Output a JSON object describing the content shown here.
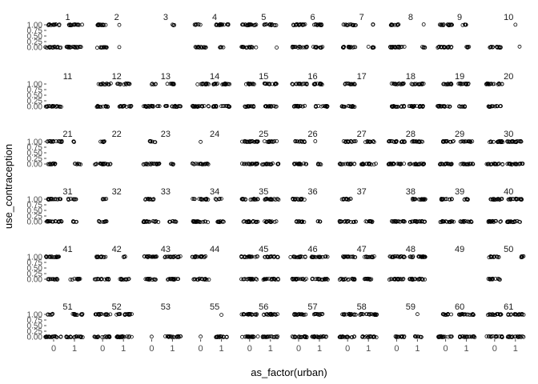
{
  "chart_data": {
    "type": "scatter",
    "layout": "facet-grid",
    "xlabel": "as_factor(urban)",
    "ylabel": "use_contraception",
    "x_categories": [
      "0",
      "1"
    ],
    "y_ticks": [
      "1.00",
      "0.75",
      "0.50",
      "0.25",
      "0.00"
    ],
    "ylim": [
      0,
      1
    ],
    "grid": false,
    "point_style": "open-circle",
    "panels": [
      {
        "id": "1",
        "one_0": [
          -0.3,
          0.3
        ],
        "one_1": [
          -0.3,
          0.4
        ],
        "zero_0": [
          -0.4,
          0.4
        ],
        "zero_1": [
          -0.4,
          0.4
        ]
      },
      {
        "id": "2",
        "one_0": [
          -0.25,
          0.3
        ],
        "one_1": [
          -0.2,
          -0.2
        ],
        "zero_0": [
          -0.3,
          0.2
        ],
        "zero_1": [
          -0.2,
          -0.2
        ]
      },
      {
        "id": "3",
        "one_0": null,
        "one_1": [
          0.0,
          0.1
        ],
        "zero_0": null,
        "zero_1": null
      },
      {
        "id": "4",
        "one_0": [
          -0.3,
          0.0
        ],
        "one_1": [
          -0.3,
          0.4
        ],
        "zero_0": [
          -0.3,
          0.3
        ],
        "zero_1": [
          -0.1,
          0.1
        ]
      },
      {
        "id": "5",
        "one_0": [
          -0.4,
          0.4
        ],
        "one_1": [
          -0.3,
          0.3
        ],
        "zero_0": [
          -0.4,
          0.4
        ],
        "zero_1": [
          0.3,
          0.3
        ]
      },
      {
        "id": "6",
        "one_0": [
          -0.3,
          0.4
        ],
        "one_1": [
          -0.3,
          0.2
        ],
        "zero_0": [
          -0.3,
          0.4
        ],
        "zero_1": [
          -0.3,
          0.2
        ]
      },
      {
        "id": "7",
        "one_0": [
          -0.2,
          0.4
        ],
        "one_1": [
          0.2,
          0.3
        ],
        "zero_0": [
          -0.3,
          0.4
        ],
        "zero_1": [
          0.0,
          0.3
        ]
      },
      {
        "id": "8",
        "one_0": [
          -0.3,
          0.1
        ],
        "one_1": [
          0.3,
          0.3
        ],
        "zero_0": [
          -0.4,
          0.4
        ],
        "zero_1": [
          0.2,
          0.4
        ]
      },
      {
        "id": "9",
        "one_0": [
          -0.3,
          0.4
        ],
        "one_1": [
          -0.2,
          0.0
        ],
        "zero_0": [
          -0.4,
          0.3
        ],
        "zero_1": [
          0.0,
          0.2
        ]
      },
      {
        "id": "10",
        "one_0": null,
        "one_1": [
          0.0,
          0.0
        ],
        "zero_0": [
          -0.3,
          0.3
        ],
        "zero_1": [
          0.2,
          0.2
        ]
      },
      {
        "id": "11",
        "one_0": null,
        "one_1": null,
        "zero_0": [
          -0.4,
          0.4
        ],
        "zero_1": null
      },
      {
        "id": "12",
        "one_0": [
          -0.2,
          0.4
        ],
        "one_1": [
          -0.3,
          0.3
        ],
        "zero_0": [
          -0.3,
          0.3
        ],
        "zero_1": [
          -0.2,
          0.4
        ]
      },
      {
        "id": "13",
        "one_0": [
          0.0,
          0.2
        ],
        "one_1": [
          -0.3,
          0.1
        ],
        "zero_0": [
          -0.4,
          0.4
        ],
        "zero_1": [
          -0.4,
          0.4
        ]
      },
      {
        "id": "14",
        "one_0": [
          -0.2,
          0.4
        ],
        "one_1": [
          -0.4,
          0.4
        ],
        "zero_0": [
          -0.4,
          0.4
        ],
        "zero_1": [
          -0.4,
          0.4
        ]
      },
      {
        "id": "15",
        "one_0": [
          -0.2,
          0.3
        ],
        "one_1": [
          -0.3,
          0.3
        ],
        "zero_0": [
          -0.3,
          0.3
        ],
        "zero_1": [
          -0.3,
          0.3
        ]
      },
      {
        "id": "16",
        "one_0": [
          -0.4,
          0.4
        ],
        "one_1": [
          -0.3,
          0.3
        ],
        "zero_0": [
          -0.3,
          0.3
        ],
        "zero_1": [
          -0.2,
          0.4
        ]
      },
      {
        "id": "17",
        "one_0": [
          -0.2,
          0.4
        ],
        "one_1": null,
        "zero_0": [
          -0.3,
          0.4
        ],
        "zero_1": null
      },
      {
        "id": "18",
        "one_0": [
          -0.3,
          0.4
        ],
        "one_1": [
          -0.3,
          0.3
        ],
        "zero_0": [
          -0.3,
          0.4
        ],
        "zero_1": [
          -0.4,
          0.4
        ]
      },
      {
        "id": "19",
        "one_0": [
          -0.2,
          0.3
        ],
        "one_1": [
          -0.4,
          0.2
        ],
        "zero_0": [
          -0.4,
          0.3
        ],
        "zero_1": [
          -0.4,
          0.0
        ]
      },
      {
        "id": "20",
        "one_0": [
          -0.4,
          0.4
        ],
        "one_1": null,
        "zero_0": [
          -0.3,
          0.3
        ],
        "zero_1": null
      },
      {
        "id": "21",
        "one_0": [
          -0.3,
          0.4
        ],
        "one_1": [
          -0.1,
          0.0
        ],
        "zero_0": [
          -0.3,
          0.2
        ],
        "zero_1": [
          0.0,
          0.3
        ]
      },
      {
        "id": "22",
        "one_0": [
          -0.2,
          0.1
        ],
        "one_1": null,
        "zero_0": [
          -0.4,
          0.4
        ],
        "zero_1": null
      },
      {
        "id": "23",
        "one_0": [
          -0.1,
          0.2
        ],
        "one_1": null,
        "zero_0": [
          -0.4,
          0.4
        ],
        "zero_1": [
          -0.1,
          0.1
        ]
      },
      {
        "id": "24",
        "one_0": [
          0.0,
          0.0
        ],
        "one_1": null,
        "zero_0": [
          -0.4,
          0.4
        ],
        "zero_1": null
      },
      {
        "id": "25",
        "one_0": [
          -0.4,
          0.4
        ],
        "one_1": [
          -0.3,
          0.3
        ],
        "zero_0": [
          -0.4,
          0.4
        ],
        "zero_1": [
          -0.4,
          0.4
        ]
      },
      {
        "id": "26",
        "one_0": [
          -0.2,
          0.3
        ],
        "one_1": [
          -0.2,
          -0.2
        ],
        "zero_0": [
          -0.3,
          0.4
        ],
        "zero_1": [
          -0.1,
          0.1
        ]
      },
      {
        "id": "27",
        "one_0": [
          -0.2,
          0.4
        ],
        "one_1": [
          -0.2,
          0.3
        ],
        "zero_0": [
          -0.4,
          0.4
        ],
        "zero_1": [
          -0.4,
          0.4
        ]
      },
      {
        "id": "28",
        "one_0": [
          -0.4,
          0.4
        ],
        "one_1": [
          -0.3,
          0.3
        ],
        "zero_0": [
          -0.4,
          0.4
        ],
        "zero_1": [
          -0.4,
          0.4
        ]
      },
      {
        "id": "29",
        "one_0": [
          -0.2,
          0.4
        ],
        "one_1": [
          -0.3,
          0.3
        ],
        "zero_0": [
          -0.4,
          0.4
        ],
        "zero_1": [
          -0.3,
          0.4
        ]
      },
      {
        "id": "30",
        "one_0": [
          -0.3,
          0.4
        ],
        "one_1": [
          -0.4,
          0.4
        ],
        "zero_0": [
          -0.4,
          0.4
        ],
        "zero_1": [
          -0.4,
          0.4
        ]
      },
      {
        "id": "31",
        "one_0": [
          -0.3,
          0.4
        ],
        "one_1": [
          -0.3,
          0.1
        ],
        "zero_0": [
          -0.4,
          0.4
        ],
        "zero_1": [
          -0.1,
          0.1
        ]
      },
      {
        "id": "32",
        "one_0": [
          0.0,
          0.2
        ],
        "one_1": null,
        "zero_0": [
          -0.2,
          0.2
        ],
        "zero_1": null
      },
      {
        "id": "33",
        "one_0": [
          -0.4,
          0.1
        ],
        "one_1": null,
        "zero_0": [
          -0.4,
          0.4
        ],
        "zero_1": [
          -0.2,
          0.2
        ]
      },
      {
        "id": "34",
        "one_0": [
          -0.4,
          0.4
        ],
        "one_1": [
          -0.3,
          0.0
        ],
        "zero_0": [
          -0.4,
          0.4
        ],
        "zero_1": [
          -0.2,
          0.2
        ]
      },
      {
        "id": "35",
        "one_0": [
          -0.4,
          0.4
        ],
        "one_1": [
          -0.3,
          0.4
        ],
        "zero_0": [
          -0.4,
          0.4
        ],
        "zero_1": [
          -0.3,
          0.3
        ]
      },
      {
        "id": "36",
        "one_0": [
          -0.3,
          0.4
        ],
        "one_1": null,
        "zero_0": [
          -0.2,
          0.3
        ],
        "zero_1": [
          -0.1,
          0.1
        ]
      },
      {
        "id": "37",
        "one_0": [
          -0.3,
          0.2
        ],
        "one_1": null,
        "zero_0": [
          -0.4,
          0.4
        ],
        "zero_1": [
          -0.2,
          0.2
        ]
      },
      {
        "id": "38",
        "one_0": null,
        "one_1": [
          -0.3,
          0.4
        ],
        "zero_0": [
          -0.3,
          0.4
        ],
        "zero_1": [
          -0.4,
          0.4
        ]
      },
      {
        "id": "39",
        "one_0": [
          -0.3,
          0.3
        ],
        "one_1": [
          -0.2,
          0.1
        ],
        "zero_0": [
          -0.3,
          0.4
        ],
        "zero_1": [
          -0.3,
          0.3
        ]
      },
      {
        "id": "40",
        "one_0": [
          -0.3,
          0.4
        ],
        "one_1": [
          -0.4,
          0.4
        ],
        "zero_0": [
          -0.3,
          0.4
        ],
        "zero_1": [
          -0.4,
          0.4
        ]
      },
      {
        "id": "41",
        "one_0": [
          -0.4,
          0.3
        ],
        "one_1": null,
        "zero_0": [
          -0.3,
          0.3
        ],
        "zero_1": [
          -0.2,
          0.3
        ]
      },
      {
        "id": "42",
        "one_0": [
          -0.3,
          0.2
        ],
        "one_1": [
          -0.1,
          0.1
        ],
        "zero_0": [
          -0.4,
          0.3
        ],
        "zero_1": [
          -0.2,
          0.3
        ]
      },
      {
        "id": "43",
        "one_0": [
          -0.4,
          0.4
        ],
        "one_1": [
          -0.4,
          0.4
        ],
        "zero_0": [
          -0.3,
          0.3
        ],
        "zero_1": [
          -0.3,
          0.3
        ]
      },
      {
        "id": "44",
        "one_0": [
          -0.4,
          0.3
        ],
        "one_1": null,
        "zero_0": [
          -0.4,
          0.4
        ],
        "zero_1": null
      },
      {
        "id": "45",
        "one_0": [
          -0.4,
          0.4
        ],
        "one_1": [
          -0.3,
          0.4
        ],
        "zero_0": [
          -0.4,
          0.4
        ],
        "zero_1": [
          -0.4,
          0.4
        ]
      },
      {
        "id": "46",
        "one_0": [
          -0.4,
          0.4
        ],
        "one_1": [
          -0.4,
          0.4
        ],
        "zero_0": [
          -0.4,
          0.4
        ],
        "zero_1": [
          -0.4,
          0.4
        ]
      },
      {
        "id": "47",
        "one_0": [
          -0.3,
          0.4
        ],
        "one_1": [
          -0.2,
          0.3
        ],
        "zero_0": [
          -0.4,
          0.4
        ],
        "zero_1": [
          -0.3,
          0.2
        ]
      },
      {
        "id": "48",
        "one_0": [
          -0.4,
          0.4
        ],
        "one_1": [
          -0.4,
          0.4
        ],
        "zero_0": [
          -0.4,
          0.4
        ],
        "zero_1": [
          -0.4,
          0.4
        ]
      },
      {
        "id": "49",
        "one_0": null,
        "one_1": null,
        "zero_0": null,
        "zero_1": null
      },
      {
        "id": "50",
        "one_0": [
          -0.3,
          0.2
        ],
        "one_1": [
          0.2,
          0.4
        ],
        "zero_0": [
          -0.3,
          0.3
        ],
        "zero_1": null
      },
      {
        "id": "51",
        "one_0": [
          -0.3,
          0.0
        ],
        "one_1": [
          -0.1,
          0.4
        ],
        "zero_0": [
          -0.4,
          0.4
        ],
        "zero_1": [
          -0.4,
          0.4
        ]
      },
      {
        "id": "52",
        "one_0": [
          -0.4,
          0.4
        ],
        "one_1": [
          -0.4,
          0.4
        ],
        "zero_0": [
          -0.4,
          0.4
        ],
        "zero_1": [
          -0.4,
          0.4
        ]
      },
      {
        "id": "53",
        "one_0": null,
        "one_1": null,
        "zero_0": [
          0.0,
          0.0
        ],
        "zero_1": [
          -0.4,
          0.4
        ]
      },
      {
        "id": "55",
        "one_0": null,
        "one_1": [
          0.0,
          0.0
        ],
        "zero_0": [
          0.0,
          0.0
        ],
        "zero_1": [
          -0.3,
          0.4
        ]
      },
      {
        "id": "56",
        "one_0": [
          -0.4,
          0.4
        ],
        "one_1": [
          -0.4,
          0.4
        ],
        "zero_0": [
          -0.4,
          0.4
        ],
        "zero_1": [
          -0.4,
          0.4
        ]
      },
      {
        "id": "57",
        "one_0": [
          -0.3,
          0.4
        ],
        "one_1": [
          -0.3,
          0.2
        ],
        "zero_0": [
          -0.4,
          0.4
        ],
        "zero_1": [
          -0.4,
          0.4
        ]
      },
      {
        "id": "58",
        "one_0": [
          -0.3,
          0.4
        ],
        "one_1": [
          -0.4,
          0.4
        ],
        "zero_0": [
          -0.4,
          0.4
        ],
        "zero_1": [
          -0.3,
          0.4
        ]
      },
      {
        "id": "59",
        "one_0": null,
        "one_1": [
          0.0,
          0.0
        ],
        "zero_0": [
          -0.2,
          0.4
        ],
        "zero_1": [
          -0.2,
          0.2
        ]
      },
      {
        "id": "60",
        "one_0": [
          -0.2,
          0.3
        ],
        "one_1": [
          -0.4,
          0.4
        ],
        "zero_0": [
          -0.4,
          0.4
        ],
        "zero_1": [
          -0.4,
          0.4
        ]
      },
      {
        "id": "61",
        "one_0": [
          -0.4,
          0.4
        ],
        "one_1": [
          -0.4,
          0.4
        ],
        "zero_0": [
          -0.4,
          0.4
        ],
        "zero_1": [
          -0.4,
          0.4
        ]
      }
    ]
  }
}
